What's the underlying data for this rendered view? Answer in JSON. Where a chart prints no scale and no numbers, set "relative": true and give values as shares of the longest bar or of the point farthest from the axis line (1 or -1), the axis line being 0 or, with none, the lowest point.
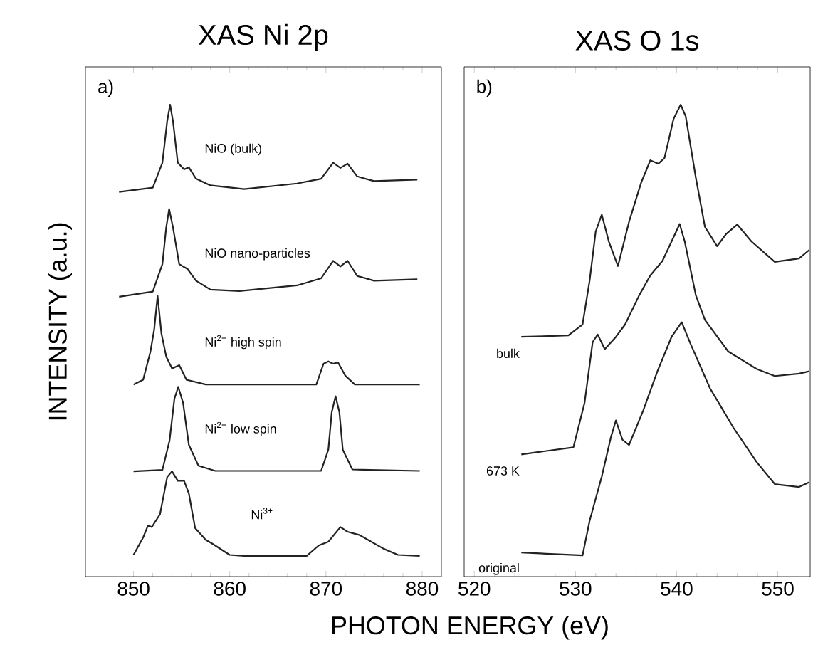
{
  "chart_data": [
    {
      "type": "line",
      "relative": true,
      "title": "XAS Ni 2p",
      "ylabel": "INTENSITY (a.u.)",
      "xlabel": "PHOTON ENERGY (eV)",
      "xlim": [
        845,
        882
      ],
      "xticks": [
        850,
        860,
        870,
        880
      ],
      "annotations": [
        "a)"
      ],
      "series": [
        {
          "name": "NiO (bulk)",
          "color": "#222222",
          "x": [
            848.5,
            852,
            853,
            853.5,
            853.8,
            854.1,
            854.6,
            855.25,
            855.75,
            856.5,
            858,
            861.5,
            867,
            869.5,
            870.75,
            871.5,
            872.25,
            873.25,
            875,
            879.5
          ],
          "values": [
            0.815,
            0.824,
            0.877,
            0.965,
            1.0,
            0.965,
            0.877,
            0.863,
            0.867,
            0.843,
            0.829,
            0.821,
            0.833,
            0.843,
            0.877,
            0.866,
            0.875,
            0.848,
            0.838,
            0.841
          ]
        },
        {
          "name": "NiO nano-particles",
          "color": "#222222",
          "x": [
            848.5,
            852,
            853,
            853.4,
            853.7,
            854.1,
            854.75,
            855.6,
            856.5,
            858,
            861,
            867,
            869.5,
            870.75,
            871.5,
            872.25,
            873.25,
            875,
            879.5
          ],
          "values": [
            0.593,
            0.604,
            0.662,
            0.74,
            0.779,
            0.74,
            0.662,
            0.652,
            0.627,
            0.608,
            0.605,
            0.617,
            0.632,
            0.669,
            0.657,
            0.669,
            0.637,
            0.627,
            0.63
          ]
        },
        {
          "name": "Ni$^{2+}$ high spin",
          "color": "#222222",
          "x": [
            850,
            851,
            851.75,
            852.15,
            852.5,
            852.9,
            853.4,
            854,
            854.75,
            855.5,
            857.5,
            869,
            869.75,
            870.25,
            870.75,
            871.25,
            872,
            873,
            879.75
          ],
          "values": [
            0.407,
            0.417,
            0.476,
            0.524,
            0.595,
            0.515,
            0.466,
            0.441,
            0.448,
            0.417,
            0.407,
            0.407,
            0.451,
            0.456,
            0.451,
            0.454,
            0.426,
            0.407,
            0.407
          ]
        },
        {
          "name": "Ni$^{2+}$ low spin",
          "color": "#222222",
          "x": [
            850,
            853,
            853.75,
            854.25,
            854.65,
            855.15,
            855.75,
            856.75,
            858.5,
            869.5,
            870.25,
            870.6,
            871,
            871.4,
            871.75,
            872.75,
            879.75
          ],
          "values": [
            0.223,
            0.226,
            0.289,
            0.377,
            0.402,
            0.368,
            0.279,
            0.235,
            0.224,
            0.224,
            0.269,
            0.348,
            0.382,
            0.348,
            0.269,
            0.227,
            0.224
          ]
        },
        {
          "name": "Ni$^{3+}$",
          "color": "#222222",
          "x": [
            850,
            851,
            851.5,
            851.9,
            852.75,
            853.5,
            854,
            854.6,
            855.25,
            855.75,
            856.4,
            857.5,
            858.25,
            860,
            861.5,
            868,
            869.25,
            870.25,
            871.5,
            872.25,
            873.5,
            876,
            877.5,
            879.75
          ],
          "values": [
            0.046,
            0.083,
            0.108,
            0.105,
            0.132,
            0.211,
            0.223,
            0.203,
            0.203,
            0.176,
            0.103,
            0.078,
            0.069,
            0.046,
            0.044,
            0.044,
            0.066,
            0.074,
            0.105,
            0.095,
            0.088,
            0.059,
            0.046,
            0.044
          ]
        }
      ]
    },
    {
      "type": "line",
      "relative": true,
      "title": "XAS O 1s",
      "xlim": [
        519,
        553.2
      ],
      "xticks": [
        520,
        530,
        540,
        550
      ],
      "annotations": [
        "b)"
      ],
      "series": [
        {
          "name": "bulk",
          "color": "#222222",
          "x": [
            524.65,
            529.3,
            530.7,
            531.4,
            532.0,
            532.6,
            533.3,
            534.2,
            535.3,
            536.5,
            537.4,
            538.2,
            538.8,
            539.7,
            540.4,
            540.9,
            541.9,
            542.8,
            544.0,
            544.9,
            546.0,
            547.4,
            549.7,
            552.1,
            553.1
          ],
          "values": [
            0.508,
            0.511,
            0.534,
            0.627,
            0.731,
            0.767,
            0.71,
            0.658,
            0.752,
            0.835,
            0.882,
            0.875,
            0.887,
            0.97,
            1.0,
            0.975,
            0.845,
            0.741,
            0.7,
            0.726,
            0.746,
            0.71,
            0.667,
            0.674,
            0.692
          ]
        },
        {
          "name": "673 K",
          "color": "#222222",
          "x": [
            524.65,
            529.8,
            530.9,
            531.7,
            532.2,
            532.9,
            534.0,
            534.9,
            536.3,
            537.4,
            538.6,
            539.5,
            540.3,
            540.8,
            541.9,
            542.8,
            545.1,
            547.9,
            549.7,
            552.1,
            553.1
          ],
          "values": [
            0.259,
            0.274,
            0.368,
            0.497,
            0.513,
            0.482,
            0.508,
            0.534,
            0.596,
            0.638,
            0.669,
            0.71,
            0.747,
            0.71,
            0.596,
            0.544,
            0.477,
            0.44,
            0.425,
            0.43,
            0.435
          ]
        },
        {
          "name": "original",
          "color": "#222222",
          "x": [
            524.65,
            530.7,
            531.4,
            532.6,
            533.5,
            534.0,
            534.65,
            535.3,
            536.7,
            538.1,
            539.5,
            540.5,
            541.4,
            543.3,
            545.6,
            547.9,
            549.7,
            552.1,
            553.1
          ],
          "values": [
            0.051,
            0.045,
            0.118,
            0.212,
            0.295,
            0.331,
            0.29,
            0.279,
            0.352,
            0.435,
            0.508,
            0.539,
            0.492,
            0.399,
            0.316,
            0.243,
            0.196,
            0.19,
            0.2
          ]
        }
      ]
    }
  ]
}
